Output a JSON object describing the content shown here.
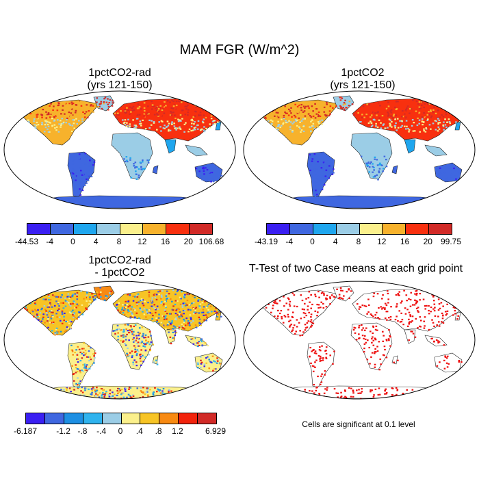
{
  "main_title": "MAM FGR (W/m^2)",
  "panels": [
    {
      "id": "p1",
      "title_line1": "1pctCO2-rad",
      "title_line2": "(yrs 121-150)"
    },
    {
      "id": "p2",
      "title_line1": "1pctCO2",
      "title_line2": "(yrs 121-150)"
    },
    {
      "id": "p3",
      "title_line1": "1pctCO2-rad",
      "title_line2": "- 1pctCO2"
    },
    {
      "id": "p4",
      "title_line1": "T-Test of two Case means at each grid point",
      "title_line2": ""
    }
  ],
  "colorbars": {
    "cb1": {
      "colors": [
        "#3a1ff2",
        "#3f67e0",
        "#1fa6ee",
        "#9bcde6",
        "#fbf08c",
        "#f7b22c",
        "#f8300f",
        "#d12a27"
      ],
      "labels": [
        "-44.53",
        "-4",
        "0",
        "4",
        "8",
        "12",
        "16",
        "20",
        "106.68"
      ]
    },
    "cb2": {
      "colors": [
        "#3a1ff2",
        "#3f67e0",
        "#1fa6ee",
        "#9bcde6",
        "#fbf08c",
        "#f7b22c",
        "#f8300f",
        "#d12a27"
      ],
      "labels": [
        "-43.19",
        "-4",
        "0",
        "4",
        "8",
        "12",
        "16",
        "20",
        "99.75"
      ]
    },
    "cb3": {
      "colors": [
        "#3a1ff2",
        "#3f67e0",
        "#1d8fe3",
        "#2fb3ee",
        "#9bcde6",
        "#fbf08c",
        "#f7c425",
        "#f88a12",
        "#f2230c",
        "#d12a27"
      ],
      "labels": [
        "-6.187",
        "",
        "-1.2",
        "-.8",
        "-.4",
        "0",
        ".4",
        ".8",
        "1.2",
        "",
        "6.929"
      ]
    }
  },
  "significance_note": "Cells are significant at 0.1 level",
  "colors": {
    "land_base_p1": "#3f67e0",
    "north_hot": "#f8300f",
    "sig_red": "#ee1111"
  }
}
